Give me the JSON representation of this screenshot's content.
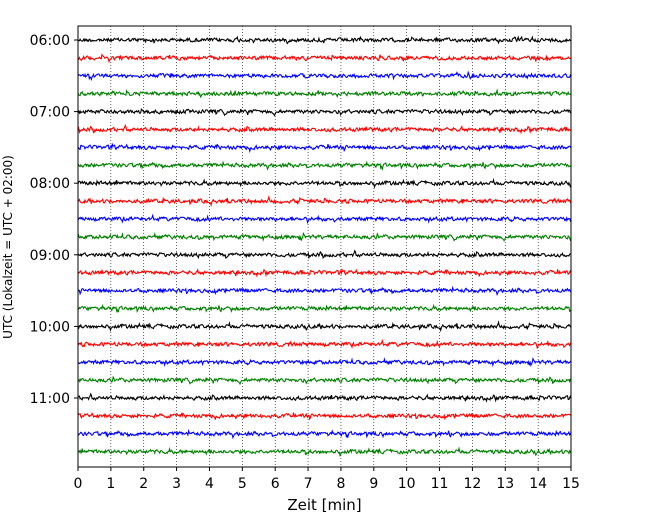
{
  "chart_data": {
    "type": "line",
    "title": "",
    "xlabel": "Zeit  [min]",
    "ylabel": "UTC (Lokalzeit = UTC + 02:00)",
    "xlim": [
      0,
      15
    ],
    "x_ticks": [
      "0",
      "1",
      "2",
      "3",
      "4",
      "5",
      "6",
      "7",
      "8",
      "9",
      "10",
      "11",
      "12",
      "13",
      "14",
      "15"
    ],
    "y_ticks": [
      {
        "label": "06:00",
        "trace": 0
      },
      {
        "label": "07:00",
        "trace": 4
      },
      {
        "label": "08:00",
        "trace": 8
      },
      {
        "label": "09:00",
        "trace": 12
      },
      {
        "label": "10:00",
        "trace": 16
      },
      {
        "label": "11:00",
        "trace": 20
      }
    ],
    "traces_start": "06:00",
    "trace_interval_minutes": 15,
    "trace_count": 24,
    "trace_colors": [
      "#000000",
      "#ff0000",
      "#0000ff",
      "#008000"
    ],
    "grid": "vertical dotted at each minute",
    "legend": "none"
  }
}
